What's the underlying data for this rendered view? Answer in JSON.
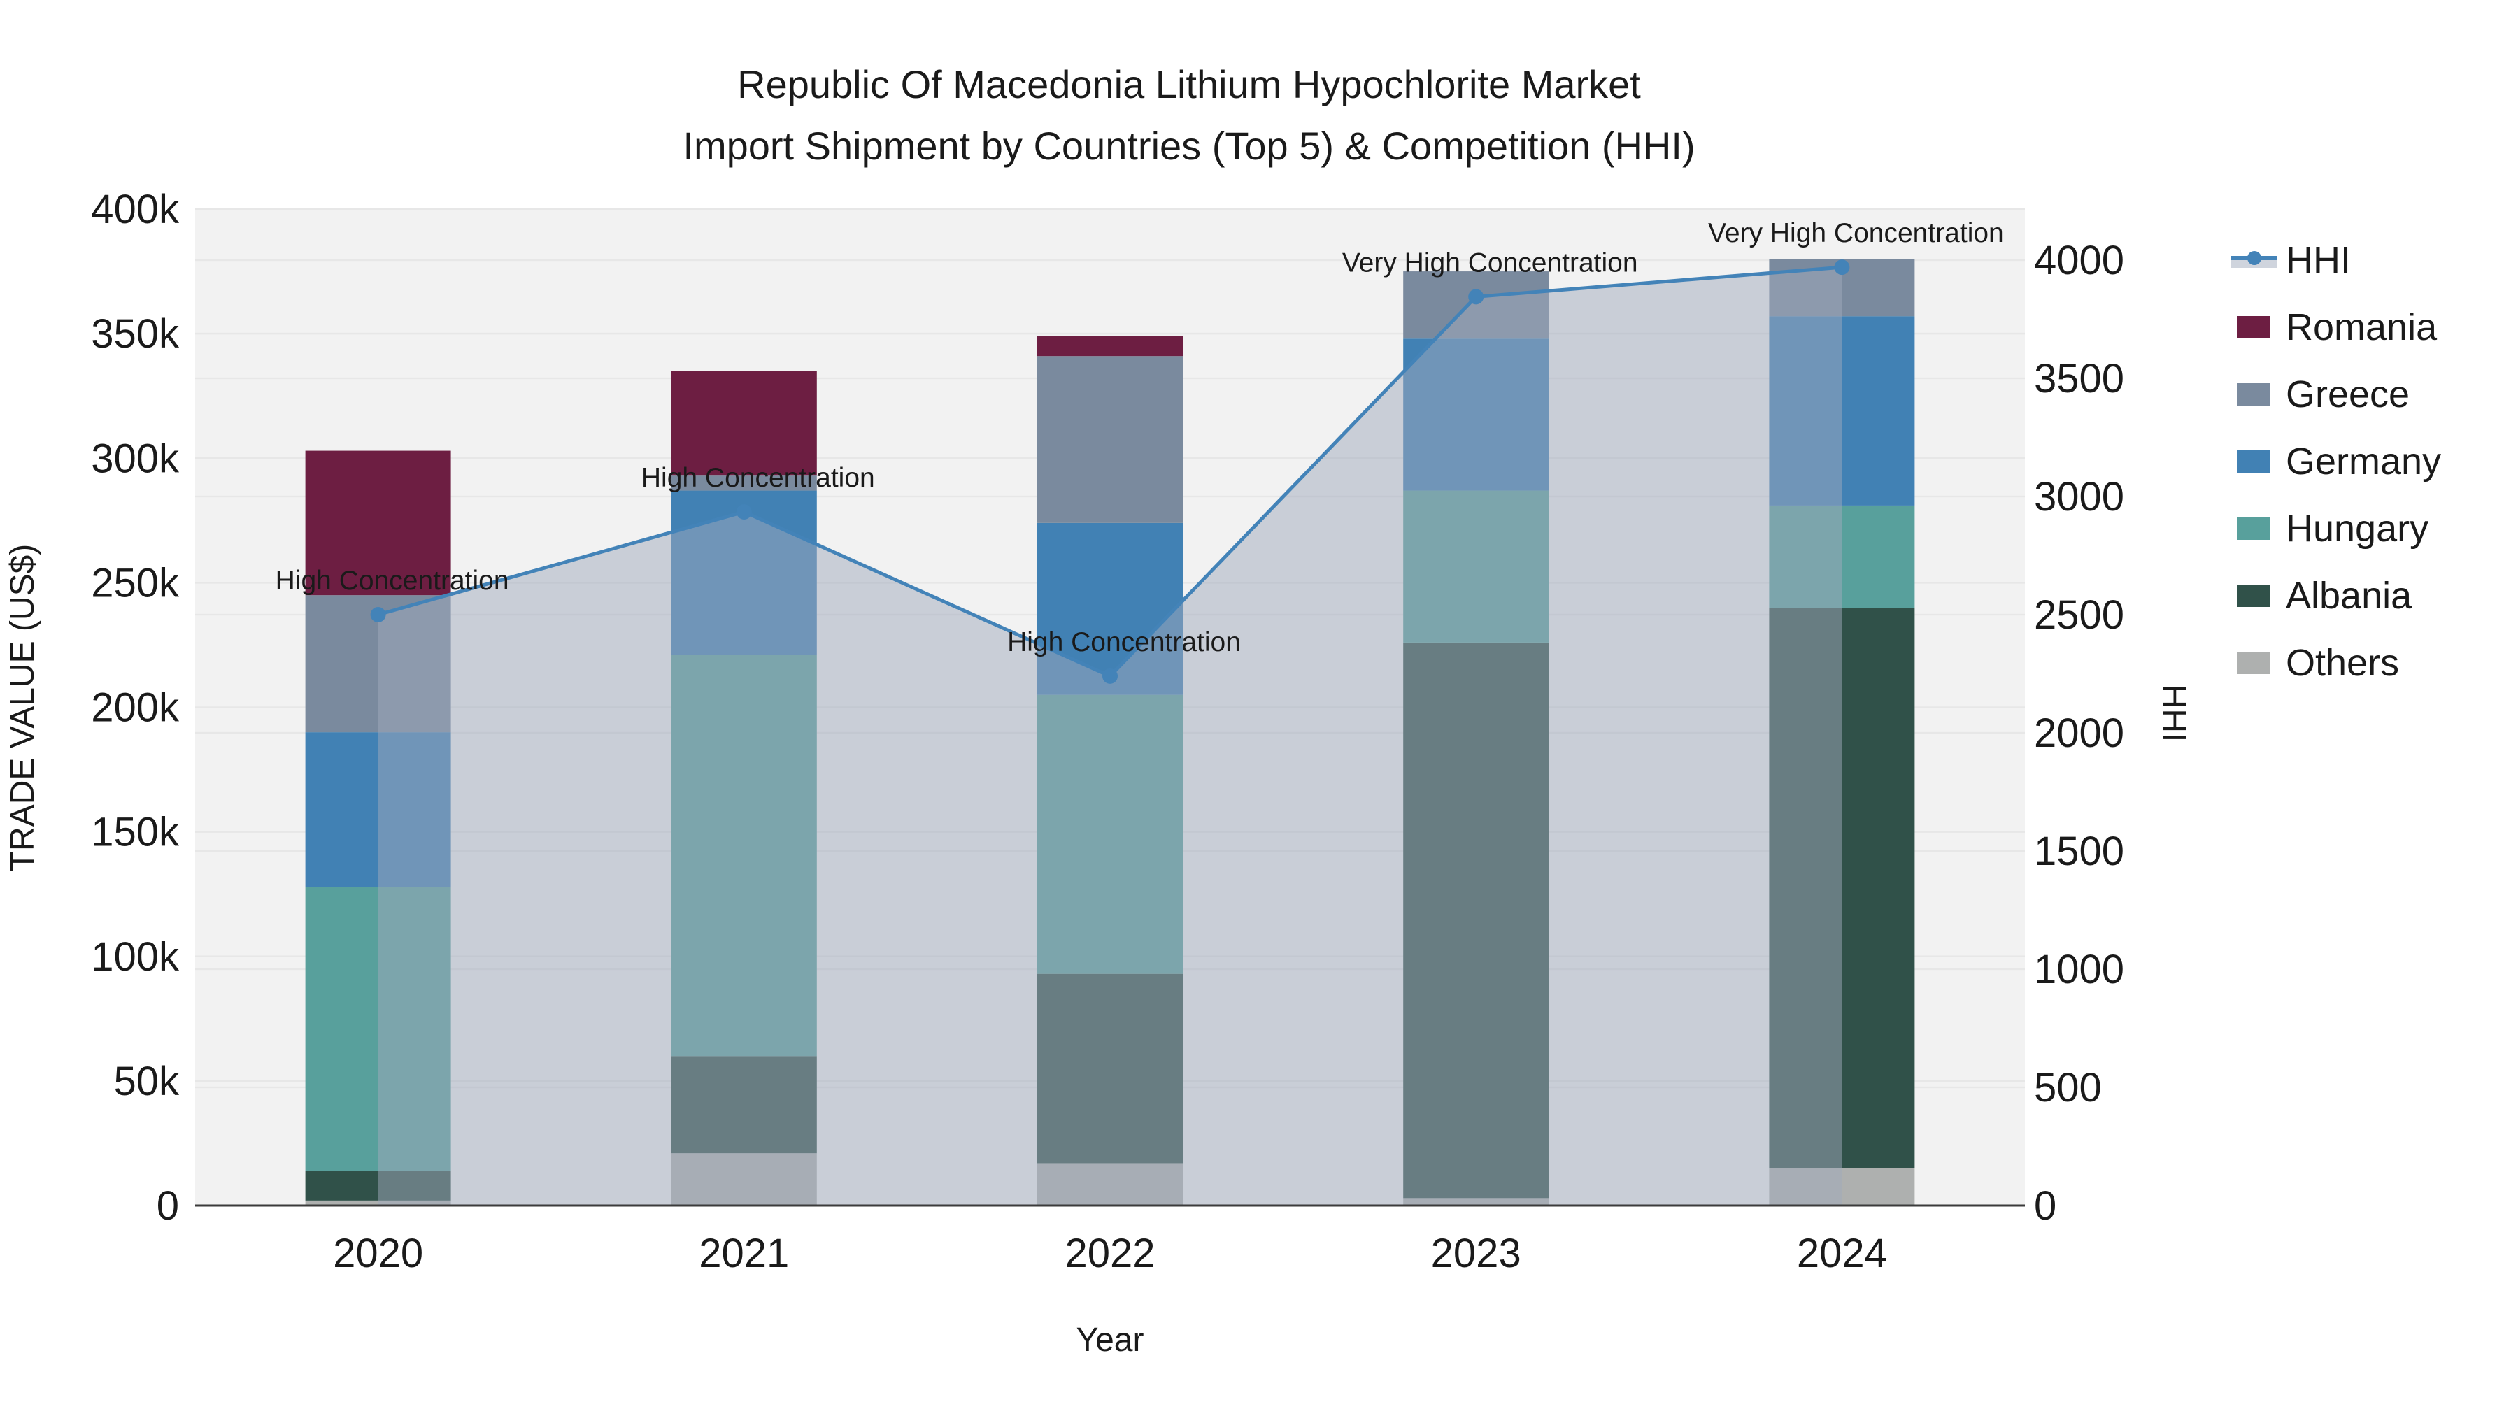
{
  "title": {
    "line1": "Republic Of Macedonia Lithium Hypochlorite Market",
    "line2": "Import Shipment by Countries (Top 5) & Competition (HHI)"
  },
  "chart_data": {
    "type": "stacked-bar+line",
    "categories": [
      "2020",
      "2021",
      "2022",
      "2023",
      "2024"
    ],
    "x_label": "Year",
    "y_left": {
      "label": "TRADE VALUE (US$)",
      "ticks": [
        "0",
        "50k",
        "100k",
        "150k",
        "200k",
        "250k",
        "300k",
        "350k",
        "400k"
      ],
      "tick_values": [
        0,
        50000,
        100000,
        150000,
        200000,
        250000,
        300000,
        350000,
        400000
      ],
      "range": [
        0,
        400000
      ]
    },
    "y_right": {
      "label": "HHI",
      "ticks": [
        "0",
        "500",
        "1000",
        "1500",
        "2000",
        "2500",
        "3000",
        "3500",
        "4000"
      ],
      "tick_values": [
        0,
        500,
        1000,
        1500,
        2000,
        2500,
        3000,
        3500,
        4000
      ],
      "range_top": 4216
    },
    "series": [
      {
        "name": "Romania",
        "color": "#6d1e42",
        "values": [
          58000,
          42000,
          8000,
          0,
          0
        ]
      },
      {
        "name": "Greece",
        "color": "#7a8a9e",
        "values": [
          55000,
          6000,
          67000,
          27000,
          23000
        ]
      },
      {
        "name": "Germany",
        "color": "#4181b4",
        "values": [
          62000,
          66000,
          69000,
          61000,
          76000
        ]
      },
      {
        "name": "Hungary",
        "color": "#58a09c",
        "values": [
          114000,
          161000,
          112000,
          61000,
          41000
        ]
      },
      {
        "name": "Albania",
        "color": "#305149",
        "values": [
          12000,
          39000,
          76000,
          223000,
          225000
        ]
      },
      {
        "name": "Others",
        "color": "#aeb0af",
        "values": [
          2000,
          21000,
          17000,
          3000,
          15000
        ]
      }
    ],
    "stack_totals": [
      303000,
      335000,
      349000,
      375000,
      380000
    ],
    "line": {
      "name": "HHI",
      "color": "#4383b8",
      "fill": "rgba(160,170,188,0.5)",
      "axis": "right",
      "values": [
        2500,
        2935,
        2240,
        3845,
        3970
      ]
    },
    "annotations": [
      "High Concentration",
      "High Concentration",
      "High Concentration",
      "Very High Concentration",
      "Very High Concentration"
    ],
    "legend_position": "right",
    "grid": true,
    "plot_background": "#f2f2f2"
  }
}
